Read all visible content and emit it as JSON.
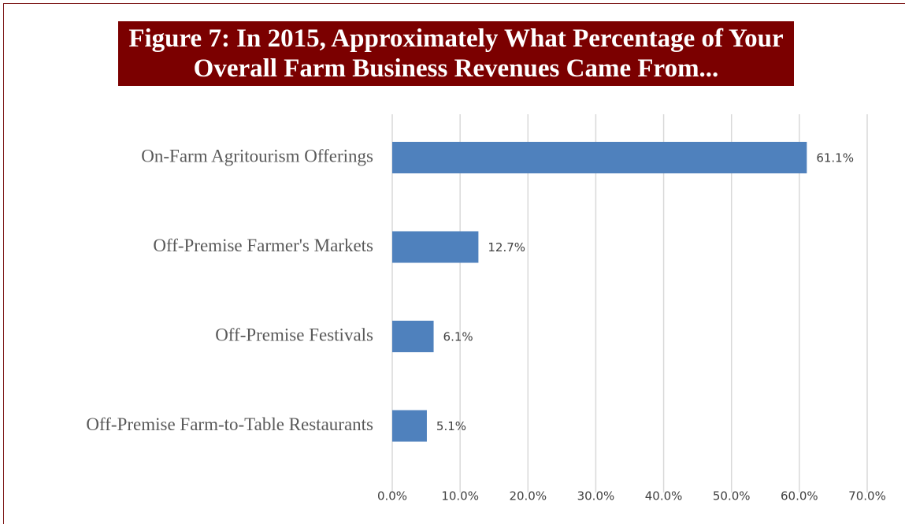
{
  "chart_data": {
    "type": "bar",
    "orientation": "horizontal",
    "title": "Figure 7: In 2015, Approximately What Percentage of Your Overall Farm Business Revenues Came From...",
    "categories": [
      "On-Farm Agritourism Offerings",
      "Off-Premise Farmer's Markets",
      "Off-Premise Festivals",
      "Off-Premise Farm-to-Table Restaurants"
    ],
    "values": [
      61.1,
      12.7,
      6.1,
      5.1
    ],
    "value_labels": [
      "61.1%",
      "12.7%",
      "6.1%",
      "5.1%"
    ],
    "color": "#4f81bd",
    "xlim": [
      0,
      70
    ],
    "xticks": [
      {
        "value": 0,
        "label": "0.0%"
      },
      {
        "value": 10,
        "label": "10.0%"
      },
      {
        "value": 20,
        "label": "20.0%"
      },
      {
        "value": 30,
        "label": "30.0%"
      },
      {
        "value": 40,
        "label": "40.0%"
      },
      {
        "value": 50,
        "label": "50.0%"
      },
      {
        "value": 60,
        "label": "60.0%"
      },
      {
        "value": 70,
        "label": "70.0%"
      }
    ],
    "grid": true
  }
}
